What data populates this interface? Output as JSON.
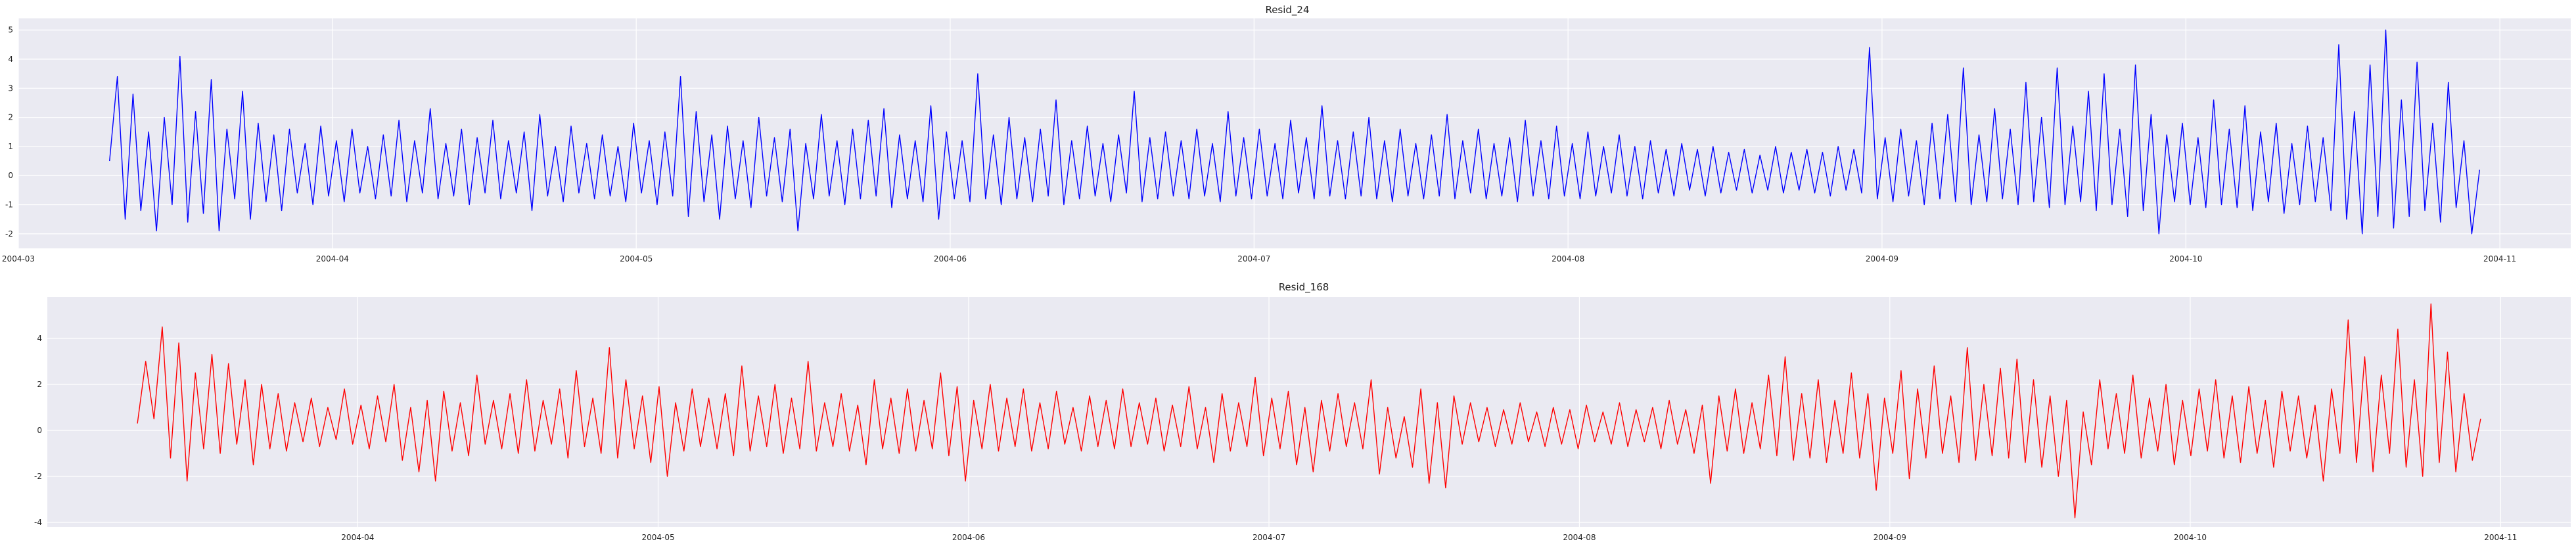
{
  "chart_data": [
    {
      "type": "line",
      "title": "Resid_24",
      "xlabel": "",
      "ylabel": "",
      "x_range": [
        "2004-03-01",
        "2004-11-08"
      ],
      "ylim": [
        -2.5,
        5.4
      ],
      "grid": true,
      "x_tick_labels": [
        "2004-03",
        "2004-04",
        "2004-05",
        "2004-06",
        "2004-07",
        "2004-08",
        "2004-09",
        "2004-10",
        "2004-11"
      ],
      "y_tick_labels": [
        "-2",
        "-1",
        "0",
        "1",
        "2",
        "3",
        "4",
        "5"
      ],
      "series": [
        {
          "color": "#0000FF",
          "x_start": "2004-03-10",
          "x_end": "2004-10-30",
          "values": [
            0.5,
            3.4,
            -1.5,
            2.8,
            -1.2,
            1.5,
            -1.9,
            2.0,
            -1.0,
            4.1,
            -1.6,
            2.2,
            -1.3,
            3.3,
            -1.9,
            1.6,
            -0.8,
            2.9,
            -1.5,
            1.8,
            -0.9,
            1.4,
            -1.2,
            1.6,
            -0.6,
            1.1,
            -1.0,
            1.7,
            -0.7,
            1.2,
            -0.9,
            1.6,
            -0.6,
            1.0,
            -0.8,
            1.4,
            -0.7,
            1.9,
            -0.9,
            1.2,
            -0.6,
            2.3,
            -0.8,
            1.1,
            -0.7,
            1.6,
            -1.0,
            1.3,
            -0.6,
            1.9,
            -0.8,
            1.2,
            -0.6,
            1.5,
            -1.2,
            2.1,
            -0.7,
            1.0,
            -0.9,
            1.7,
            -0.6,
            1.1,
            -0.8,
            1.4,
            -0.7,
            1.0,
            -0.9,
            1.8,
            -0.6,
            1.2,
            -1.0,
            1.5,
            -0.7,
            3.4,
            -1.4,
            2.2,
            -0.9,
            1.4,
            -1.5,
            1.7,
            -0.8,
            1.2,
            -1.1,
            2.0,
            -0.7,
            1.3,
            -0.9,
            1.6,
            -1.9,
            1.1,
            -0.8,
            2.1,
            -0.7,
            1.2,
            -1.0,
            1.6,
            -0.8,
            1.9,
            -0.7,
            2.3,
            -1.1,
            1.4,
            -0.8,
            1.2,
            -0.9,
            2.4,
            -1.5,
            1.5,
            -0.8,
            1.2,
            -0.9,
            3.5,
            -0.8,
            1.4,
            -1.0,
            2.0,
            -0.8,
            1.3,
            -0.9,
            1.6,
            -0.7,
            2.6,
            -1.0,
            1.2,
            -0.8,
            1.7,
            -0.7,
            1.1,
            -0.9,
            1.4,
            -0.6,
            2.9,
            -0.9,
            1.3,
            -0.8,
            1.5,
            -0.7,
            1.2,
            -0.8,
            1.6,
            -0.7,
            1.1,
            -0.9,
            2.2,
            -0.7,
            1.3,
            -0.8,
            1.6,
            -0.7,
            1.1,
            -0.8,
            1.9,
            -0.6,
            1.3,
            -0.8,
            2.4,
            -0.7,
            1.2,
            -0.8,
            1.5,
            -0.7,
            2.0,
            -0.8,
            1.2,
            -0.9,
            1.6,
            -0.7,
            1.1,
            -0.8,
            1.4,
            -0.7,
            2.1,
            -0.8,
            1.2,
            -0.6,
            1.6,
            -0.8,
            1.1,
            -0.7,
            1.3,
            -0.9,
            1.9,
            -0.7,
            1.2,
            -0.8,
            1.7,
            -0.7,
            1.1,
            -0.8,
            1.5,
            -0.7,
            1.0,
            -0.6,
            1.4,
            -0.7,
            1.0,
            -0.8,
            1.2,
            -0.6,
            0.9,
            -0.7,
            1.1,
            -0.5,
            0.9,
            -0.7,
            1.0,
            -0.6,
            0.8,
            -0.5,
            0.9,
            -0.6,
            0.7,
            -0.5,
            1.0,
            -0.6,
            0.8,
            -0.5,
            0.9,
            -0.6,
            0.8,
            -0.7,
            1.0,
            -0.5,
            0.9,
            -0.6,
            4.4,
            -0.8,
            1.3,
            -0.9,
            1.6,
            -0.7,
            1.2,
            -1.0,
            1.8,
            -0.8,
            2.1,
            -0.9,
            3.7,
            -1.0,
            1.4,
            -0.9,
            2.3,
            -0.8,
            1.6,
            -1.0,
            3.2,
            -0.9,
            2.0,
            -1.1,
            3.7,
            -1.0,
            1.7,
            -0.9,
            2.9,
            -1.2,
            3.5,
            -1.0,
            1.6,
            -1.4,
            3.8,
            -1.2,
            2.1,
            -2.0,
            1.4,
            -0.9,
            1.8,
            -1.0,
            1.3,
            -1.1,
            2.6,
            -1.0,
            1.6,
            -1.1,
            2.4,
            -1.2,
            1.5,
            -0.9,
            1.8,
            -1.3,
            1.1,
            -1.0,
            1.7,
            -0.9,
            1.3,
            -1.2,
            4.5,
            -1.5,
            2.2,
            -2.0,
            3.8,
            -1.4,
            5.0,
            -1.8,
            2.6,
            -1.4,
            3.9,
            -1.2,
            1.8,
            -1.6,
            3.2,
            -1.1,
            1.2,
            -2.0,
            0.2
          ]
        }
      ]
    },
    {
      "type": "line",
      "title": "Resid_168",
      "xlabel": "",
      "ylabel": "",
      "x_range": [
        "2004-03-01",
        "2004-11-08"
      ],
      "ylim": [
        -4.2,
        5.8
      ],
      "grid": true,
      "x_tick_labels": [
        "2004-04",
        "2004-05",
        "2004-06",
        "2004-07",
        "2004-08",
        "2004-09",
        "2004-10",
        "2004-11"
      ],
      "y_tick_labels": [
        "-4",
        "-2",
        "0",
        "2",
        "4"
      ],
      "series": [
        {
          "color": "#FF0000",
          "x_start": "2004-03-10",
          "x_end": "2004-10-30",
          "values": [
            0.3,
            3.0,
            0.5,
            4.5,
            -1.2,
            3.8,
            -2.2,
            2.5,
            -0.8,
            3.3,
            -1.0,
            2.9,
            -0.6,
            2.2,
            -1.5,
            2.0,
            -0.8,
            1.6,
            -0.9,
            1.2,
            -0.5,
            1.4,
            -0.7,
            1.0,
            -0.4,
            1.8,
            -0.6,
            1.1,
            -0.8,
            1.5,
            -0.5,
            2.0,
            -1.3,
            1.0,
            -1.8,
            1.3,
            -2.2,
            1.7,
            -0.9,
            1.2,
            -1.1,
            2.4,
            -0.6,
            1.3,
            -0.8,
            1.6,
            -1.0,
            2.2,
            -0.9,
            1.3,
            -0.6,
            1.8,
            -1.2,
            2.6,
            -0.7,
            1.4,
            -1.0,
            3.6,
            -1.2,
            2.2,
            -0.8,
            1.5,
            -1.4,
            1.9,
            -2.0,
            1.2,
            -0.9,
            1.8,
            -0.7,
            1.4,
            -0.8,
            1.6,
            -1.1,
            2.8,
            -0.9,
            1.5,
            -0.7,
            2.0,
            -1.0,
            1.4,
            -0.8,
            3.0,
            -0.9,
            1.2,
            -0.7,
            1.6,
            -0.9,
            1.1,
            -1.5,
            2.2,
            -0.8,
            1.4,
            -1.0,
            1.8,
            -0.9,
            1.3,
            -0.8,
            2.5,
            -1.1,
            1.9,
            -2.2,
            1.3,
            -0.8,
            2.0,
            -0.9,
            1.4,
            -0.7,
            1.8,
            -0.9,
            1.2,
            -0.8,
            1.7,
            -0.6,
            1.0,
            -0.9,
            1.5,
            -0.7,
            1.3,
            -0.8,
            1.8,
            -0.7,
            1.2,
            -0.6,
            1.4,
            -0.9,
            1.1,
            -0.7,
            1.9,
            -0.8,
            1.0,
            -1.4,
            1.6,
            -0.9,
            1.2,
            -0.7,
            2.3,
            -1.1,
            1.4,
            -0.8,
            1.7,
            -1.5,
            1.0,
            -1.8,
            1.3,
            -0.9,
            1.6,
            -0.7,
            1.2,
            -0.8,
            2.2,
            -1.9,
            1.0,
            -1.2,
            0.6,
            -1.6,
            1.8,
            -2.3,
            1.2,
            -2.5,
            1.5,
            -0.6,
            1.2,
            -0.5,
            1.0,
            -0.7,
            0.9,
            -0.6,
            1.2,
            -0.5,
            0.8,
            -0.7,
            1.0,
            -0.6,
            0.9,
            -0.8,
            1.1,
            -0.5,
            0.8,
            -0.6,
            1.2,
            -0.7,
            0.9,
            -0.5,
            1.0,
            -0.8,
            1.3,
            -0.6,
            0.9,
            -1.0,
            1.1,
            -2.3,
            1.5,
            -0.9,
            1.8,
            -1.0,
            1.2,
            -0.8,
            2.4,
            -1.1,
            3.2,
            -1.3,
            1.6,
            -1.2,
            2.2,
            -1.4,
            1.3,
            -1.0,
            2.5,
            -1.2,
            1.6,
            -2.6,
            1.4,
            -1.0,
            2.6,
            -2.1,
            1.8,
            -1.2,
            2.8,
            -1.0,
            1.5,
            -1.4,
            3.6,
            -1.3,
            2.0,
            -1.1,
            2.7,
            -1.2,
            3.1,
            -1.4,
            2.2,
            -1.6,
            1.5,
            -2.0,
            1.3,
            -3.8,
            0.8,
            -1.5,
            2.2,
            -0.8,
            1.6,
            -1.0,
            2.4,
            -1.2,
            1.4,
            -0.9,
            2.0,
            -1.5,
            1.3,
            -1.1,
            1.8,
            -0.9,
            2.2,
            -1.2,
            1.5,
            -1.4,
            1.9,
            -1.0,
            1.3,
            -1.6,
            1.7,
            -0.9,
            1.5,
            -1.2,
            1.1,
            -2.2,
            1.8,
            -1.0,
            4.8,
            -1.4,
            3.2,
            -1.8,
            2.4,
            -1.0,
            4.4,
            -1.6,
            2.2,
            -2.0,
            5.5,
            -1.4,
            3.4,
            -1.8,
            1.6,
            -1.3,
            0.5
          ]
        }
      ]
    }
  ]
}
